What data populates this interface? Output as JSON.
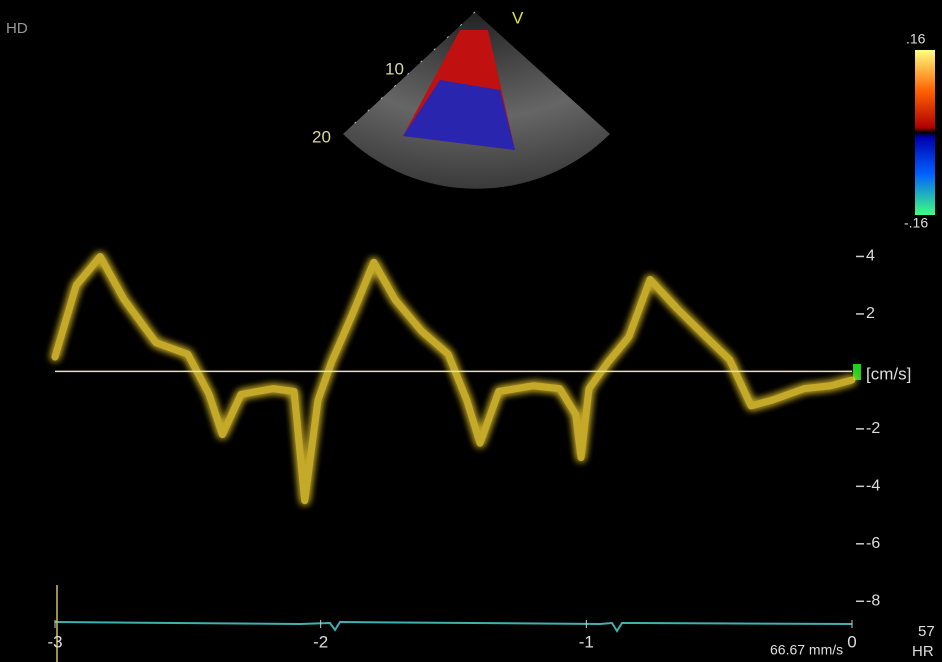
{
  "chart_data": {
    "type": "line",
    "mode": "HD",
    "view_label": "V",
    "depth_ticks": [
      10,
      20
    ],
    "scale_ticks": [
      {
        "value": 0.16,
        "label": ".16"
      },
      {
        "value": -0.16,
        "label": "-.16"
      }
    ],
    "y_label": "[cm/s]",
    "sweep_speed": "66.67 mm/s",
    "heart_rate": 57,
    "heart_rate_label": "HR",
    "x": [
      -3,
      -2.92,
      -2.83,
      -2.74,
      -2.62,
      -2.5,
      -2.42,
      -2.37,
      -2.3,
      -2.18,
      -2.1,
      -2.06,
      -2.01,
      -1.96,
      -1.88,
      -1.8,
      -1.72,
      -1.62,
      -1.52,
      -1.45,
      -1.4,
      -1.33,
      -1.2,
      -1.1,
      -1.04,
      -1.02,
      -0.99,
      -0.92,
      -0.84,
      -0.76,
      -0.66,
      -0.55,
      -0.46,
      -0.38,
      -0.3,
      -0.18,
      -0.08,
      0
    ],
    "series": [
      {
        "color": "#e8c830",
        "values": [
          0.5,
          3,
          4,
          2.5,
          1,
          0.6,
          -0.8,
          -2.2,
          -0.8,
          -0.6,
          -0.7,
          -4.5,
          -1,
          0.3,
          2,
          3.8,
          2.5,
          1.4,
          0.6,
          -1,
          -2.5,
          -0.7,
          -0.5,
          -0.6,
          -1.5,
          -3,
          -0.6,
          0.3,
          1.2,
          3.2,
          2.2,
          1.2,
          0.4,
          -1.2,
          -1,
          -0.6,
          -0.5,
          -0.3
        ]
      }
    ],
    "xlim": [
      -3,
      0
    ],
    "xticks": [
      -3,
      -2,
      -1,
      0
    ],
    "ylim": [
      -9,
      6
    ],
    "yticks": [
      4,
      2,
      -2,
      -4,
      -6,
      -8
    ]
  }
}
